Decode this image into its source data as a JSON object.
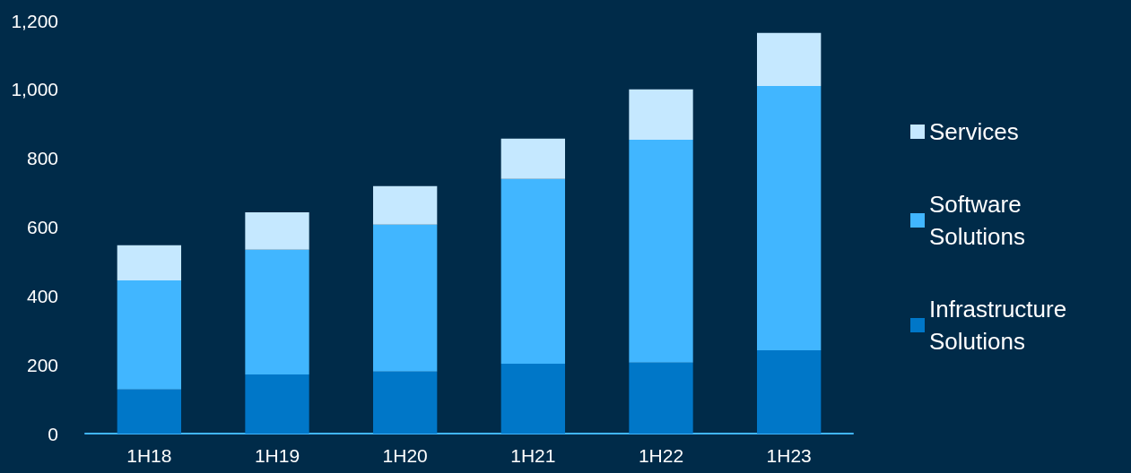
{
  "chart_data": {
    "type": "bar",
    "stacked": true,
    "categories": [
      "1H18",
      "1H19",
      "1H20",
      "1H21",
      "1H22",
      "1H23"
    ],
    "series": [
      {
        "name": "Infrastructure Solutions",
        "color": "#0077c8",
        "values": [
          128,
          172,
          180,
          203,
          206,
          242
        ]
      },
      {
        "name": "Software Solutions",
        "color": "#41b6ff",
        "values": [
          317,
          362,
          427,
          537,
          648,
          768
        ]
      },
      {
        "name": "Services",
        "color": "#c5e8ff",
        "values": [
          102,
          109,
          112,
          117,
          146,
          154
        ]
      }
    ],
    "ylim": [
      0,
      1200
    ],
    "yticks": [
      0,
      200,
      400,
      600,
      800,
      {
        "value": 1000,
        "label": "1,000"
      },
      {
        "value": 1200,
        "label": "1,200"
      }
    ],
    "grid": false,
    "legend": "right"
  }
}
